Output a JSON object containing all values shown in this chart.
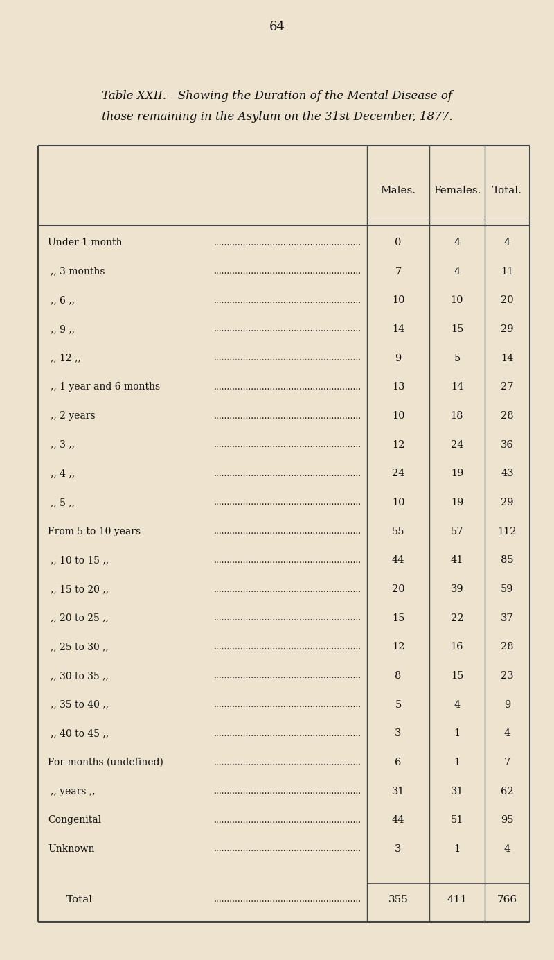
{
  "page_number": "64",
  "title_line1": "Table XXII.—Showing the Duration of the Mental Disease of",
  "title_line2": "those remaining in the Asylum on the 31st December, 1877.",
  "col_headers": [
    "Males.",
    "Females.",
    "Total."
  ],
  "row_labels": [
    "Under 1 month",
    ",, 3 months",
    ",, 6 ,,",
    ",, 9 ,,",
    ",, 12 ,,",
    ",, 1 year and 6 months",
    ",, 2 years",
    ",, 3 ,,",
    ",, 4 ,,",
    ",, 5 ,,",
    "From 5 to 10 years",
    ",, 10 to 15 ,,",
    ",, 15 to 20 ,,",
    ",, 20 to 25 ,,",
    ",, 25 to 30 ,,",
    ",, 30 to 35 ,,",
    ",, 35 to 40 ,,",
    ",, 40 to 45 ,,",
    "For months (undefined)",
    ",, years ,,",
    "Congenital",
    "Unknown"
  ],
  "males": [
    0,
    7,
    10,
    14,
    9,
    13,
    10,
    12,
    24,
    10,
    55,
    44,
    20,
    15,
    12,
    8,
    5,
    3,
    6,
    31,
    44,
    3
  ],
  "females": [
    4,
    4,
    10,
    15,
    5,
    14,
    18,
    24,
    19,
    19,
    57,
    41,
    39,
    22,
    16,
    15,
    4,
    1,
    1,
    31,
    51,
    1
  ],
  "totals": [
    4,
    11,
    20,
    29,
    14,
    27,
    28,
    36,
    43,
    29,
    112,
    85,
    59,
    37,
    28,
    23,
    9,
    4,
    7,
    62,
    95,
    4
  ],
  "total_m": 355,
  "total_f": 411,
  "total_t": 766,
  "bg_color": "#ede3cf",
  "text_color": "#111111",
  "line_color": "#444444"
}
